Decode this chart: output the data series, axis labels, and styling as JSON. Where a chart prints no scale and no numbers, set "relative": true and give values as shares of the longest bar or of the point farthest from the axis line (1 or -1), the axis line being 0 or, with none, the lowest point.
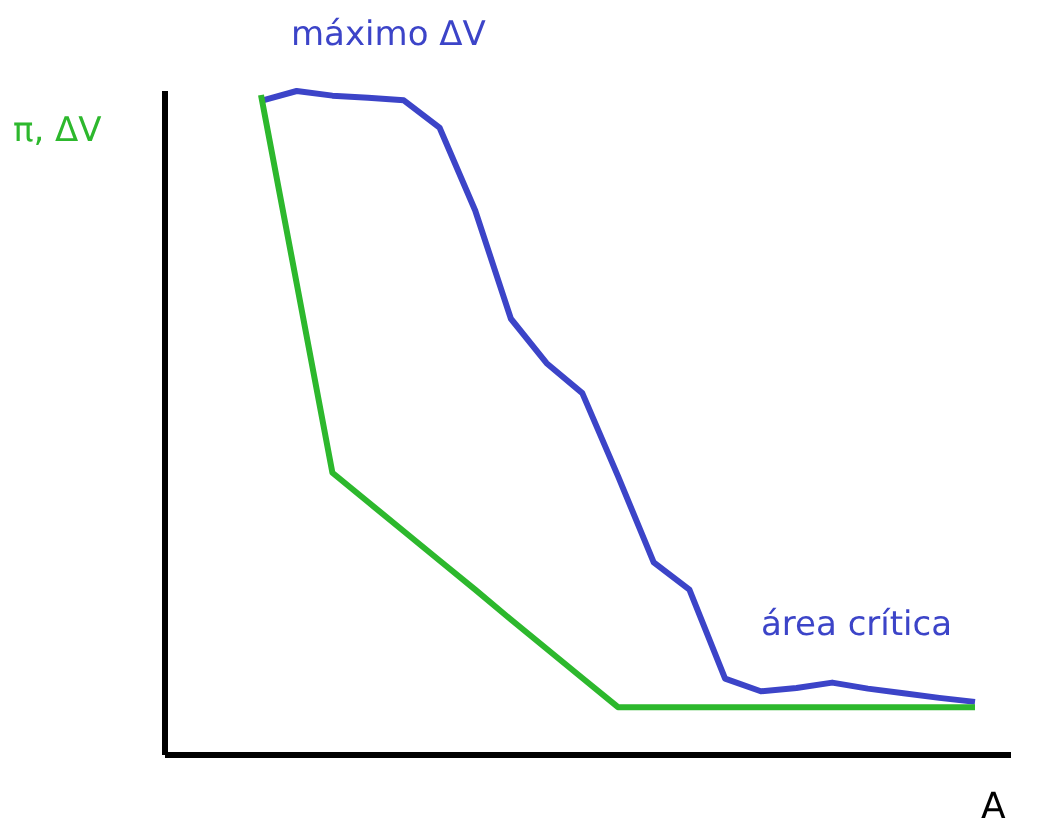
{
  "chart_data": {
    "type": "line",
    "relative": true,
    "xlabel": "A",
    "ylabel": "π, ΔV",
    "categories": [
      null,
      null,
      null,
      null,
      null,
      null,
      null,
      null,
      null,
      null,
      null,
      null,
      null,
      null,
      null,
      null,
      null,
      null,
      null,
      null,
      null
    ],
    "series": [
      {
        "color": "#3c44c8",
        "values": [
          0.985,
          1,
          0.993,
          0.99,
          0.986,
          0.945,
          0.82,
          0.657,
          0.59,
          0.545,
          0.42,
          0.29,
          0.249,
          0.115,
          0.096,
          0.101,
          0.109,
          0.1,
          0.093,
          0.086,
          0.08
        ]
      },
      {
        "color": "#2db82d",
        "values": [
          0.994,
          0.71,
          0.425,
          0.381,
          0.337,
          0.293,
          0.249,
          0.204,
          0.16,
          0.116,
          0.072,
          0.072,
          0.072,
          0.072,
          0.072,
          0.072,
          0.072,
          0.072,
          0.072,
          0.072,
          0.072
        ]
      }
    ],
    "annotations": [
      "máximo ΔV",
      "área crítica"
    ]
  }
}
